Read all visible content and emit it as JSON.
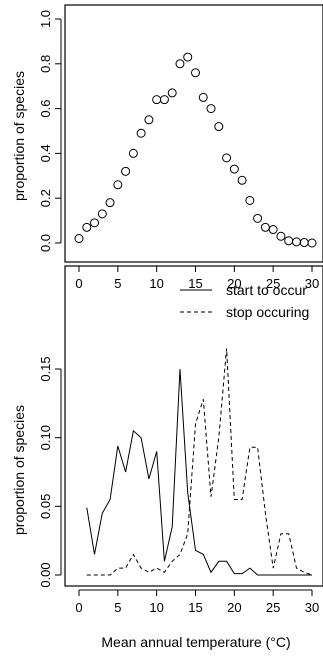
{
  "chart_data": [
    {
      "type": "scatter",
      "ylabel": "proportion of species",
      "xlabel": "",
      "xlim": [
        0,
        30
      ],
      "ylim": [
        0,
        1
      ],
      "x_ticks": [
        "0",
        "5",
        "10",
        "15",
        "20",
        "25",
        "30"
      ],
      "y_ticks": [
        "0.0",
        "0.2",
        "0.4",
        "0.6",
        "0.8",
        "1.0"
      ],
      "marker": "open-circle",
      "series": [
        {
          "x": [
            0,
            1,
            2,
            3,
            4,
            5,
            6,
            7,
            8,
            9,
            10,
            11,
            12,
            13,
            14,
            15,
            16,
            17,
            18,
            19,
            20,
            21,
            22,
            23,
            24,
            25,
            26,
            27,
            28,
            29,
            30
          ],
          "y": [
            0.02,
            0.07,
            0.09,
            0.13,
            0.18,
            0.26,
            0.32,
            0.4,
            0.49,
            0.55,
            0.64,
            0.64,
            0.67,
            0.8,
            0.83,
            0.76,
            0.65,
            0.6,
            0.52,
            0.38,
            0.33,
            0.28,
            0.19,
            0.11,
            0.07,
            0.06,
            0.03,
            0.01,
            0.005,
            0.002,
            0.0
          ]
        }
      ]
    },
    {
      "type": "line",
      "ylabel": "proportion of species",
      "xlabel": "Mean annual temperature (°C)",
      "xlim": [
        0,
        30
      ],
      "ylim": [
        -0.005,
        0.17
      ],
      "x_ticks": [
        "0",
        "5",
        "10",
        "15",
        "20",
        "25",
        "30"
      ],
      "y_ticks": [
        "0.00",
        "0.05",
        "0.10",
        "0.15"
      ],
      "legend_position": "top-right",
      "series": [
        {
          "name": "start to occur",
          "style": "solid",
          "x": [
            1,
            2,
            3,
            4,
            5,
            6,
            7,
            8,
            9,
            10,
            11,
            12,
            13,
            14,
            15,
            16,
            17,
            18,
            19,
            20,
            21,
            22,
            23,
            24,
            25,
            26,
            27,
            28,
            29,
            30
          ],
          "y": [
            0.049,
            0.015,
            0.045,
            0.055,
            0.094,
            0.075,
            0.105,
            0.1,
            0.07,
            0.09,
            0.01,
            0.035,
            0.15,
            0.06,
            0.018,
            0.015,
            0.002,
            0.01,
            0.01,
            0.001,
            0.001,
            0.005,
            0.0,
            0.0,
            0.0,
            0.0,
            0.0,
            0.0,
            0.0,
            0.0
          ]
        },
        {
          "name": "stop occuring",
          "style": "dashed",
          "x": [
            1,
            2,
            3,
            4,
            5,
            6,
            7,
            8,
            9,
            10,
            11,
            12,
            13,
            14,
            15,
            16,
            17,
            18,
            19,
            20,
            21,
            22,
            23,
            24,
            25,
            26,
            27,
            28,
            29,
            30
          ],
          "y": [
            0.0,
            0.0,
            0.0,
            0.0,
            0.005,
            0.005,
            0.015,
            0.005,
            0.002,
            0.005,
            0.002,
            0.01,
            0.015,
            0.03,
            0.11,
            0.128,
            0.057,
            0.1,
            0.165,
            0.055,
            0.055,
            0.093,
            0.093,
            0.045,
            0.005,
            0.03,
            0.03,
            0.005,
            0.002,
            0.0
          ]
        }
      ]
    }
  ]
}
